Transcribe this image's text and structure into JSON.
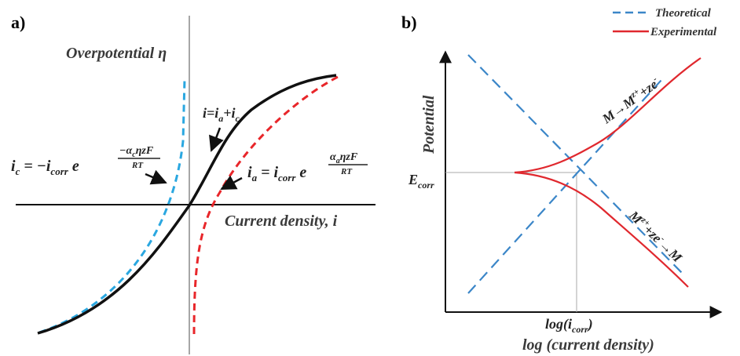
{
  "panel_a": {
    "label": "a)",
    "y_axis_title": "Overpotential η",
    "x_axis_title": "Current density, i",
    "sum_label": {
      "i": "i=i",
      "a": "a",
      "plus": "+i",
      "c": "c"
    },
    "cathodic_eq": {
      "lhs": "i",
      "lhs_sub": "c",
      "mid": " = −i",
      "mid_sub": "corr",
      "e": " e",
      "exp_num": "−α",
      "exp_num_sub": "c",
      "exp_num_rest": "ηzF",
      "exp_den": "RT"
    },
    "anodic_eq": {
      "lhs": "i",
      "lhs_sub": "a",
      "mid": " = i",
      "mid_sub": "corr",
      "e": " e",
      "exp_num": "α",
      "exp_num_sub": "a",
      "exp_num_rest": "ηzF",
      "exp_den": "RT"
    },
    "colors": {
      "total": "#111111",
      "cathodic": "#2aa7e0",
      "anodic": "#e8262a"
    }
  },
  "panel_b": {
    "label": "b)",
    "y_axis_title": "Potential",
    "x_axis_title": "log (current density)",
    "ecorr": {
      "main": "E",
      "sub": "corr"
    },
    "icorr": {
      "pre": "log(i",
      "sub": "corr",
      "post": ")"
    },
    "anodic_reaction": "M→M",
    "anodic_sup": "z+",
    "anodic_rest": "+ze",
    "anodic_sup2": "-",
    "cathodic_reaction": "M",
    "cathodic_sup": "z+",
    "cathodic_rest": "+ze",
    "cathodic_sup2": "-",
    "cathodic_end": "→M",
    "legend": [
      {
        "label": "Theoretical",
        "style": "dashed",
        "color": "#3b86c8"
      },
      {
        "label": "Experimental",
        "style": "solid",
        "color": "#e0282e"
      }
    ]
  }
}
